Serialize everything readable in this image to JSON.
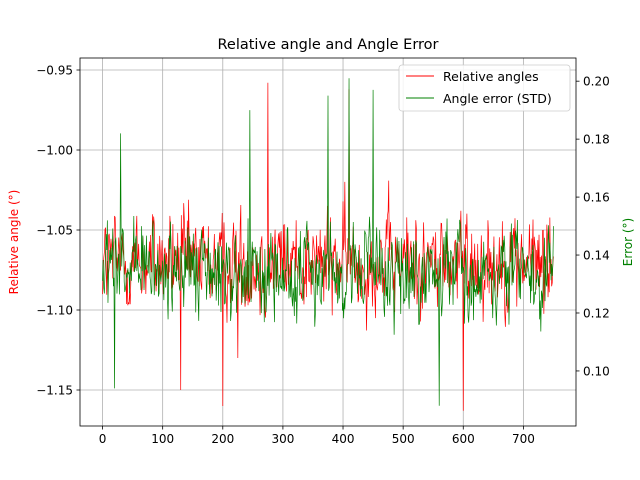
{
  "chart_data": {
    "type": "line",
    "title": "Relative angle and Angle Error",
    "xlabel": "",
    "x_range": [
      0,
      750
    ],
    "xlim": [
      -37.5,
      787.5
    ],
    "x_ticks": [
      0,
      100,
      200,
      300,
      400,
      500,
      600,
      700
    ],
    "x_tick_labels": [
      "0",
      "100",
      "200",
      "300",
      "400",
      "500",
      "600",
      "700"
    ],
    "y_left": {
      "label": "Relative angle (°)",
      "color": "#ff0000",
      "lim": [
        -1.1725,
        -0.9425
      ],
      "ticks": [
        -0.95,
        -1.0,
        -1.05,
        -1.1,
        -1.15
      ],
      "tick_labels": [
        "−0.95",
        "−1.00",
        "−1.05",
        "−1.10",
        "−1.15"
      ]
    },
    "y_right": {
      "label": "Error (°)",
      "color": "#008000",
      "lim": [
        0.081,
        0.208
      ],
      "ticks": [
        0.1,
        0.12,
        0.14,
        0.16,
        0.18,
        0.2
      ],
      "tick_labels": [
        "0.10",
        "0.12",
        "0.14",
        "0.16",
        "0.18",
        "0.20"
      ]
    },
    "grid": true,
    "legend_position": "top-right",
    "series": [
      {
        "name": "Relative angles",
        "axis": "left",
        "color": "#ff0000",
        "n_points": 751,
        "mean": -1.07,
        "min": -1.163,
        "max": -0.958,
        "peaks": [
          [
            275,
            -0.958
          ],
          [
            410,
            -0.962
          ],
          [
            600,
            -1.163
          ],
          [
            200,
            -1.16
          ],
          [
            130,
            -1.15
          ],
          [
            225,
            -1.13
          ]
        ]
      },
      {
        "name": "Angle error (STD)",
        "axis": "right",
        "color": "#008000",
        "n_points": 751,
        "mean": 0.134,
        "min": 0.088,
        "max": 0.201,
        "peaks": [
          [
            410,
            0.201
          ],
          [
            450,
            0.197
          ],
          [
            375,
            0.195
          ],
          [
            245,
            0.19
          ],
          [
            30,
            0.182
          ],
          [
            560,
            0.088
          ],
          [
            20,
            0.094
          ]
        ]
      }
    ]
  }
}
